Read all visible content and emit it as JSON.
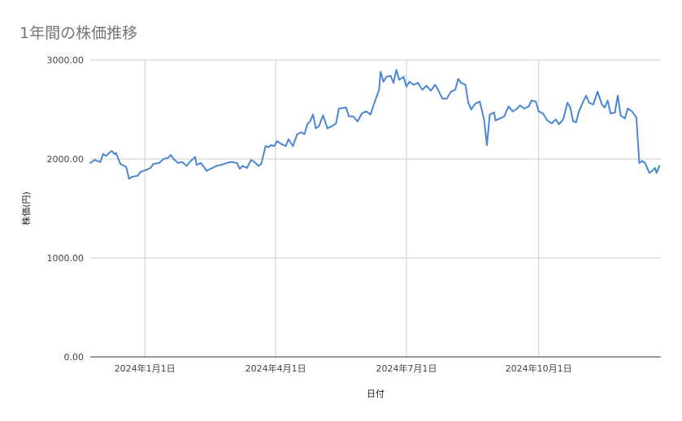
{
  "chart_data": {
    "type": "line",
    "title": "1年間の株価推移",
    "xlabel": "日付",
    "ylabel": "株価(円)",
    "ylim": [
      0,
      3000
    ],
    "xlim": [
      "2023-11-24",
      "2024-12-25"
    ],
    "grid": true,
    "colors": {
      "line": "#4a86d4",
      "grid": "#cccccc",
      "axis": "#333333"
    },
    "y_ticks": [
      {
        "value": 0,
        "label": "0.00"
      },
      {
        "value": 1000,
        "label": "1000.00"
      },
      {
        "value": 2000,
        "label": "2000.00"
      },
      {
        "value": 3000,
        "label": "3000.00"
      }
    ],
    "x_ticks": [
      {
        "date": "2024-01-01",
        "label": "2024年1月1日"
      },
      {
        "date": "2024-04-01",
        "label": "2024年4月1日"
      },
      {
        "date": "2024-07-01",
        "label": "2024年7月1日"
      },
      {
        "date": "2024-10-01",
        "label": "2024年10月1日"
      }
    ],
    "series": [
      {
        "points": [
          [
            "2023-11-24",
            1960
          ],
          [
            "2023-11-27",
            1990
          ],
          [
            "2023-12-01",
            1970
          ],
          [
            "2023-12-03",
            2050
          ],
          [
            "2023-12-05",
            2030
          ],
          [
            "2023-12-07",
            2060
          ],
          [
            "2023-12-09",
            2080
          ],
          [
            "2023-12-11",
            2050
          ],
          [
            "2023-12-12",
            2060
          ],
          [
            "2023-12-15",
            1950
          ],
          [
            "2023-12-19",
            1920
          ],
          [
            "2023-12-21",
            1800
          ],
          [
            "2023-12-23",
            1820
          ],
          [
            "2023-12-27",
            1830
          ],
          [
            "2023-12-29",
            1870
          ],
          [
            "2024-01-02",
            1890
          ],
          [
            "2024-01-05",
            1910
          ],
          [
            "2024-01-07",
            1950
          ],
          [
            "2024-01-11",
            1960
          ],
          [
            "2024-01-14",
            2000
          ],
          [
            "2024-01-17",
            2010
          ],
          [
            "2024-01-19",
            2040
          ],
          [
            "2024-01-21",
            2000
          ],
          [
            "2024-01-24",
            1960
          ],
          [
            "2024-01-27",
            1970
          ],
          [
            "2024-01-30",
            1930
          ],
          [
            "2024-02-02",
            1980
          ],
          [
            "2024-02-05",
            2020
          ],
          [
            "2024-02-06",
            1940
          ],
          [
            "2024-02-09",
            1960
          ],
          [
            "2024-02-11",
            1920
          ],
          [
            "2024-02-13",
            1880
          ],
          [
            "2024-02-17",
            1910
          ],
          [
            "2024-02-20",
            1930
          ],
          [
            "2024-02-23",
            1940
          ],
          [
            "2024-02-27",
            1960
          ],
          [
            "2024-03-01",
            1970
          ],
          [
            "2024-03-05",
            1960
          ],
          [
            "2024-03-07",
            1900
          ],
          [
            "2024-03-09",
            1930
          ],
          [
            "2024-03-12",
            1910
          ],
          [
            "2024-03-15",
            1990
          ],
          [
            "2024-03-18",
            1960
          ],
          [
            "2024-03-20",
            1930
          ],
          [
            "2024-03-22",
            1950
          ],
          [
            "2024-03-25",
            2130
          ],
          [
            "2024-03-27",
            2120
          ],
          [
            "2024-03-29",
            2140
          ],
          [
            "2024-03-31",
            2130
          ],
          [
            "2024-04-02",
            2180
          ],
          [
            "2024-04-05",
            2150
          ],
          [
            "2024-04-08",
            2130
          ],
          [
            "2024-04-10",
            2200
          ],
          [
            "2024-04-13",
            2130
          ],
          [
            "2024-04-16",
            2250
          ],
          [
            "2024-04-19",
            2270
          ],
          [
            "2024-04-21",
            2250
          ],
          [
            "2024-04-23",
            2350
          ],
          [
            "2024-04-25",
            2380
          ],
          [
            "2024-04-27",
            2450
          ],
          [
            "2024-04-29",
            2310
          ],
          [
            "2024-05-01",
            2330
          ],
          [
            "2024-05-04",
            2440
          ],
          [
            "2024-05-07",
            2310
          ],
          [
            "2024-05-10",
            2330
          ],
          [
            "2024-05-13",
            2360
          ],
          [
            "2024-05-15",
            2510
          ],
          [
            "2024-05-20",
            2520
          ],
          [
            "2024-05-22",
            2430
          ],
          [
            "2024-05-25",
            2430
          ],
          [
            "2024-05-28",
            2380
          ],
          [
            "2024-05-31",
            2460
          ],
          [
            "2024-06-03",
            2480
          ],
          [
            "2024-06-06",
            2450
          ],
          [
            "2024-06-09",
            2580
          ],
          [
            "2024-06-12",
            2700
          ],
          [
            "2024-06-13",
            2880
          ],
          [
            "2024-06-15",
            2780
          ],
          [
            "2024-06-17",
            2830
          ],
          [
            "2024-06-20",
            2840
          ],
          [
            "2024-06-22",
            2770
          ],
          [
            "2024-06-24",
            2900
          ],
          [
            "2024-06-26",
            2800
          ],
          [
            "2024-06-29",
            2830
          ],
          [
            "2024-07-01",
            2730
          ],
          [
            "2024-07-03",
            2780
          ],
          [
            "2024-07-06",
            2750
          ],
          [
            "2024-07-09",
            2770
          ],
          [
            "2024-07-12",
            2700
          ],
          [
            "2024-07-15",
            2740
          ],
          [
            "2024-07-18",
            2690
          ],
          [
            "2024-07-21",
            2750
          ],
          [
            "2024-07-23",
            2700
          ],
          [
            "2024-07-26",
            2610
          ],
          [
            "2024-07-29",
            2610
          ],
          [
            "2024-08-01",
            2680
          ],
          [
            "2024-08-04",
            2700
          ],
          [
            "2024-08-06",
            2810
          ],
          [
            "2024-08-08",
            2770
          ],
          [
            "2024-08-11",
            2750
          ],
          [
            "2024-08-13",
            2570
          ],
          [
            "2024-08-15",
            2500
          ],
          [
            "2024-08-18",
            2560
          ],
          [
            "2024-08-21",
            2580
          ],
          [
            "2024-08-24",
            2400
          ],
          [
            "2024-08-26",
            2140
          ],
          [
            "2024-08-28",
            2450
          ],
          [
            "2024-08-31",
            2470
          ],
          [
            "2024-09-01",
            2390
          ],
          [
            "2024-09-04",
            2410
          ],
          [
            "2024-09-07",
            2430
          ],
          [
            "2024-09-10",
            2530
          ],
          [
            "2024-09-13",
            2480
          ],
          [
            "2024-09-16",
            2510
          ],
          [
            "2024-09-18",
            2540
          ],
          [
            "2024-09-21",
            2510
          ],
          [
            "2024-09-24",
            2530
          ],
          [
            "2024-09-26",
            2590
          ],
          [
            "2024-09-29",
            2580
          ],
          [
            "2024-10-01",
            2480
          ],
          [
            "2024-10-04",
            2460
          ],
          [
            "2024-10-07",
            2390
          ],
          [
            "2024-10-10",
            2360
          ],
          [
            "2024-10-13",
            2400
          ],
          [
            "2024-10-15",
            2350
          ],
          [
            "2024-10-18",
            2400
          ],
          [
            "2024-10-21",
            2570
          ],
          [
            "2024-10-23",
            2520
          ],
          [
            "2024-10-25",
            2380
          ],
          [
            "2024-10-27",
            2370
          ],
          [
            "2024-10-29",
            2480
          ],
          [
            "2024-11-01",
            2580
          ],
          [
            "2024-11-03",
            2640
          ],
          [
            "2024-11-05",
            2570
          ],
          [
            "2024-11-08",
            2550
          ],
          [
            "2024-11-11",
            2680
          ],
          [
            "2024-11-14",
            2550
          ],
          [
            "2024-11-16",
            2520
          ],
          [
            "2024-11-18",
            2590
          ],
          [
            "2024-11-20",
            2460
          ],
          [
            "2024-11-23",
            2470
          ],
          [
            "2024-11-25",
            2640
          ],
          [
            "2024-11-27",
            2440
          ],
          [
            "2024-11-30",
            2410
          ],
          [
            "2024-12-02",
            2510
          ],
          [
            "2024-12-05",
            2480
          ],
          [
            "2024-12-08",
            2420
          ],
          [
            "2024-12-10",
            1960
          ],
          [
            "2024-12-12",
            1980
          ],
          [
            "2024-12-14",
            1960
          ],
          [
            "2024-12-17",
            1860
          ],
          [
            "2024-12-19",
            1880
          ],
          [
            "2024-12-21",
            1910
          ],
          [
            "2024-12-22",
            1860
          ],
          [
            "2024-12-24",
            1930
          ]
        ]
      }
    ]
  }
}
